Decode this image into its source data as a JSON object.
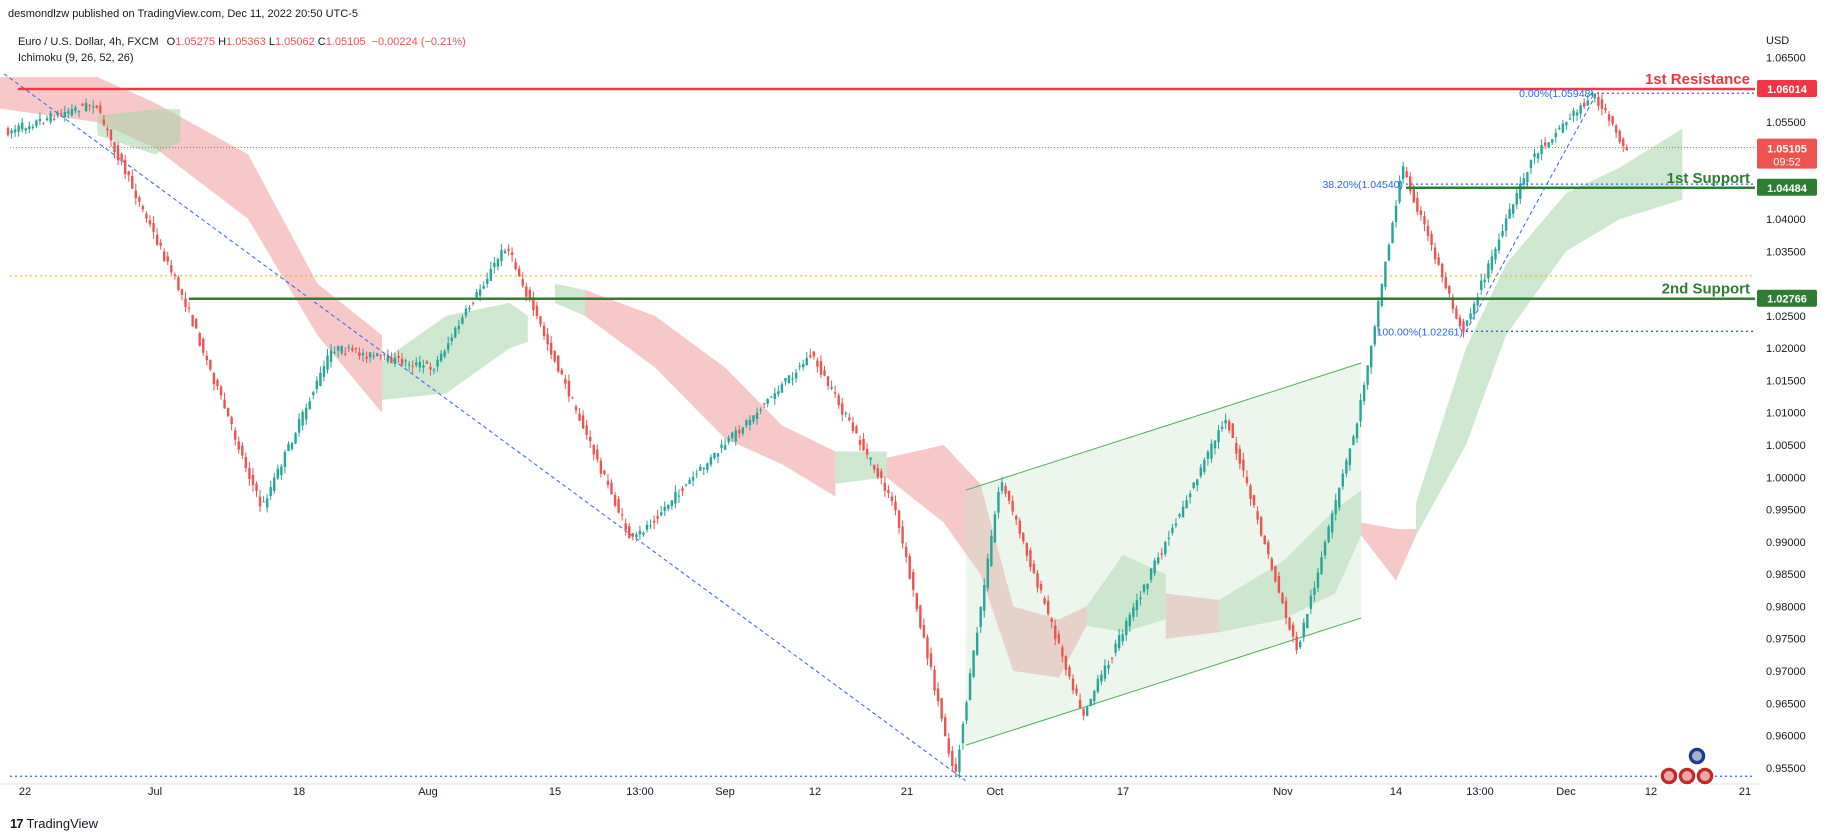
{
  "header": {
    "published": "desmondlzw published on TradingView.com, Dec 11, 2022 20:50 UTC-5",
    "symbol": "Euro / U.S. Dollar, 4h, FXCM",
    "o_label": "O",
    "o_value": "1.05275",
    "h_label": "H",
    "h_value": "1.05363",
    "l_label": "L",
    "l_value": "1.05062",
    "c_label": "C",
    "c_value": "1.05105",
    "change": "−0.00224 (−0.21%)",
    "indicator": "Ichimoku (9, 26, 52, 26)"
  },
  "footer": {
    "brand": "TradingView",
    "logo_icon": "tradingview-logo-icon"
  },
  "colors": {
    "up": "#26a69a",
    "down": "#ef5350",
    "resistance": "#f23645",
    "support": "#2e7d32",
    "fib": "#2962ff",
    "cloud_bull": "#a5d6a7",
    "cloud_bear": "#ef9a9a",
    "channel": "#4caf50",
    "axis_text": "#131722"
  },
  "chart_data": {
    "type": "candlestick",
    "instrument": "Euro / U.S. Dollar",
    "timeframe": "4h",
    "currency": "USD",
    "x_tick_labels": [
      "22",
      "Jul",
      "18",
      "Aug",
      "15",
      "13:00",
      "Sep",
      "12",
      "21",
      "Oct",
      "17",
      "Nov",
      "14",
      "13:00",
      "Dec",
      "12",
      "21"
    ],
    "y_tick_labels": [
      "1.06500",
      "1.06000",
      "1.05500",
      "1.05000",
      "1.04500",
      "1.04000",
      "1.03500",
      "1.03000",
      "1.02500",
      "1.02000",
      "1.01500",
      "1.01000",
      "1.00500",
      "1.00000",
      "0.99500",
      "0.99000",
      "0.98500",
      "0.98000",
      "0.97500",
      "0.97000",
      "0.96500",
      "0.96000",
      "0.95500"
    ],
    "ylim": [
      0.9525,
      1.0685
    ],
    "price_path": [
      {
        "x": "Jun 20",
        "y": 1.052
      },
      {
        "x": "Jun 27",
        "y": 1.058
      },
      {
        "x": "Jul 5",
        "y": 1.027
      },
      {
        "x": "Jul 14",
        "y": 0.9952
      },
      {
        "x": "Jul 22",
        "y": 1.02
      },
      {
        "x": "Aug 2",
        "y": 1.017
      },
      {
        "x": "Aug 10",
        "y": 1.036
      },
      {
        "x": "Aug 23",
        "y": 0.99
      },
      {
        "x": "Sep 12",
        "y": 1.019
      },
      {
        "x": "Sep 20",
        "y": 0.996
      },
      {
        "x": "Sep 28",
        "y": 0.9536
      },
      {
        "x": "Oct 4",
        "y": 0.9999
      },
      {
        "x": "Oct 13",
        "y": 0.9633
      },
      {
        "x": "Oct 27",
        "y": 1.0094
      },
      {
        "x": "Nov 3",
        "y": 0.973
      },
      {
        "x": "Nov 10",
        "y": 1.009
      },
      {
        "x": "Nov 15",
        "y": 1.0481
      },
      {
        "x": "Nov 21",
        "y": 1.0226
      },
      {
        "x": "Nov 28",
        "y": 1.0497
      },
      {
        "x": "Dec 5",
        "y": 1.0595
      },
      {
        "x": "Dec 9",
        "y": 1.0511
      }
    ],
    "horizontal_levels": [
      {
        "name": "1st Resistance",
        "value": 1.06014,
        "value_label": "1.06014"
      },
      {
        "name": "1st Support",
        "value": 1.04484,
        "value_label": "1.04484"
      },
      {
        "name": "2nd Support",
        "value": 1.02766,
        "value_label": "1.02766"
      }
    ],
    "current_price": {
      "value": 1.05105,
      "value_label": "1.05105",
      "countdown": "09:52"
    },
    "fibonacci": [
      {
        "label": "0.00%(1.05948)",
        "value": 1.05948
      },
      {
        "label": "38.20%(1.04540)",
        "value": 1.0454
      },
      {
        "label": "100.00%(1.02261)",
        "value": 1.02261
      }
    ],
    "grid": false
  }
}
